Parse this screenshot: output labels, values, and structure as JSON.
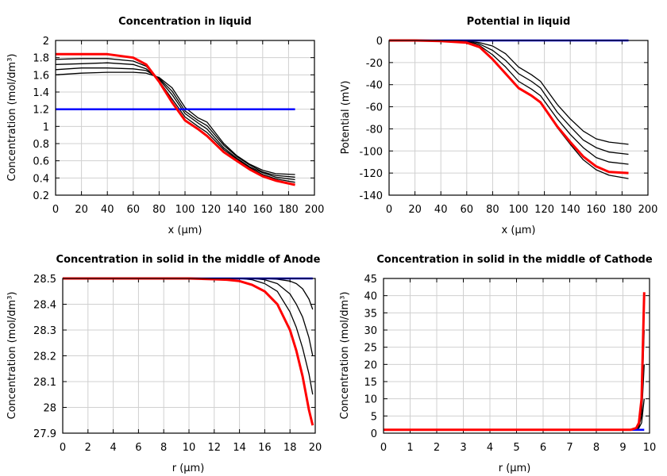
{
  "chart_data": [
    {
      "type": "line",
      "title": "Concentration in liquid",
      "xlabel": "x (µm)",
      "ylabel": "Concentration (mol/dm³)",
      "xlim": [
        0,
        200
      ],
      "ylim": [
        0.2,
        2
      ],
      "xticks": [
        0,
        20,
        40,
        60,
        80,
        100,
        120,
        140,
        160,
        180,
        200
      ],
      "yticks": [
        0.2,
        0.4,
        0.6,
        0.8,
        1,
        1.2,
        1.4,
        1.6,
        1.8,
        2
      ],
      "grid": true,
      "x": [
        0,
        20,
        40,
        60,
        70,
        80,
        90,
        100,
        110,
        117,
        130,
        140,
        150,
        160,
        170,
        185
      ],
      "series": [
        {
          "color": "#000000",
          "values": [
            1.6,
            1.62,
            1.63,
            1.63,
            1.62,
            1.57,
            1.45,
            1.22,
            1.1,
            1.05,
            0.8,
            0.66,
            0.56,
            0.49,
            0.45,
            0.44
          ]
        },
        {
          "color": "#000000",
          "values": [
            1.66,
            1.68,
            1.68,
            1.67,
            1.65,
            1.56,
            1.41,
            1.18,
            1.07,
            1.01,
            0.78,
            0.65,
            0.55,
            0.47,
            0.43,
            0.41
          ]
        },
        {
          "color": "#000000",
          "values": [
            1.72,
            1.73,
            1.74,
            1.72,
            1.67,
            1.55,
            1.37,
            1.15,
            1.04,
            0.97,
            0.75,
            0.63,
            0.53,
            0.46,
            0.41,
            0.38
          ]
        },
        {
          "color": "#000000",
          "values": [
            1.78,
            1.79,
            1.79,
            1.76,
            1.7,
            1.53,
            1.32,
            1.11,
            1.0,
            0.93,
            0.73,
            0.62,
            0.52,
            0.44,
            0.39,
            0.35
          ]
        },
        {
          "color": "#0000ff",
          "values": [
            1.2,
            1.2,
            1.2,
            1.2,
            1.2,
            1.2,
            1.2,
            1.2,
            1.2,
            1.2,
            1.2,
            1.2,
            1.2,
            1.2,
            1.2,
            1.2
          ]
        },
        {
          "color": "#ff0000",
          "values": [
            1.84,
            1.84,
            1.84,
            1.8,
            1.72,
            1.52,
            1.28,
            1.07,
            0.97,
            0.89,
            0.7,
            0.6,
            0.5,
            0.42,
            0.37,
            0.32
          ]
        }
      ]
    },
    {
      "type": "line",
      "title": "Potential in liquid",
      "xlabel": "x (µm)",
      "ylabel": "Potential (mV)",
      "xlim": [
        0,
        200
      ],
      "ylim": [
        -140,
        0
      ],
      "xticks": [
        0,
        20,
        40,
        60,
        80,
        100,
        120,
        140,
        160,
        180,
        200
      ],
      "yticks": [
        -140,
        -120,
        -100,
        -80,
        -60,
        -40,
        -20,
        0
      ],
      "grid": true,
      "x": [
        0,
        20,
        40,
        60,
        70,
        80,
        90,
        100,
        110,
        117,
        130,
        140,
        150,
        160,
        170,
        185
      ],
      "series": [
        {
          "color": "#000000",
          "values": [
            0,
            0,
            0,
            -0.5,
            -2,
            -5,
            -12,
            -24,
            -31,
            -37,
            -58,
            -71,
            -82,
            -89,
            -92,
            -94
          ]
        },
        {
          "color": "#000000",
          "values": [
            0,
            0,
            -0.2,
            -1,
            -3.3,
            -9,
            -18,
            -30,
            -37,
            -43,
            -65,
            -78,
            -90,
            -97,
            -101,
            -103
          ]
        },
        {
          "color": "#000000",
          "values": [
            0,
            0,
            -0.3,
            -1.5,
            -4.7,
            -13,
            -24,
            -37,
            -44,
            -50,
            -71,
            -85,
            -97,
            -106,
            -110,
            -112
          ]
        },
        {
          "color": "#000000",
          "values": [
            0,
            0,
            -0.5,
            -2,
            -6,
            -17,
            -30,
            -43,
            -50,
            -56,
            -79,
            -94,
            -108,
            -117,
            -122,
            -125
          ]
        },
        {
          "color": "#0000ff",
          "values": [
            0,
            0,
            0,
            0,
            0,
            0,
            0,
            0,
            0,
            0,
            0,
            0,
            0,
            0,
            0,
            0
          ]
        },
        {
          "color": "#ff0000",
          "values": [
            0,
            0,
            -0.5,
            -2,
            -6,
            -17,
            -30,
            -43,
            -50,
            -56,
            -78,
            -92,
            -105,
            -114,
            -119,
            -120
          ]
        }
      ]
    },
    {
      "type": "line",
      "title": "Concentration in solid in the middle of Anode",
      "xlabel": "r (µm)",
      "ylabel": "Concentration (mol/dm³)",
      "xlim": [
        0,
        20
      ],
      "ylim": [
        27.9,
        28.5
      ],
      "xticks": [
        0,
        2,
        4,
        6,
        8,
        10,
        12,
        14,
        16,
        18,
        20
      ],
      "yticks": [
        27.9,
        28,
        28.1,
        28.2,
        28.3,
        28.4,
        28.5
      ],
      "grid": true,
      "x": [
        0,
        4,
        8,
        10,
        12,
        13,
        14,
        15,
        16,
        17,
        18,
        18.5,
        19,
        19.5,
        19.8
      ],
      "series": [
        {
          "color": "#000000",
          "values": [
            28.5,
            28.5,
            28.5,
            28.5,
            28.5,
            28.5,
            28.5,
            28.5,
            28.5,
            28.497,
            28.49,
            28.48,
            28.46,
            28.42,
            28.38
          ]
        },
        {
          "color": "#000000",
          "values": [
            28.5,
            28.5,
            28.5,
            28.5,
            28.5,
            28.5,
            28.5,
            28.5,
            28.495,
            28.48,
            28.44,
            28.4,
            28.35,
            28.27,
            28.2
          ]
        },
        {
          "color": "#000000",
          "values": [
            28.5,
            28.5,
            28.5,
            28.5,
            28.5,
            28.5,
            28.5,
            28.495,
            28.48,
            28.45,
            28.37,
            28.31,
            28.23,
            28.13,
            28.05
          ]
        },
        {
          "color": "#0000ff",
          "values": [
            28.5,
            28.5,
            28.5,
            28.5,
            28.5,
            28.5,
            28.5,
            28.5,
            28.5,
            28.5,
            28.5,
            28.5,
            28.5,
            28.5,
            28.5
          ]
        },
        {
          "color": "#ff0000",
          "values": [
            28.5,
            28.5,
            28.5,
            28.5,
            28.497,
            28.495,
            28.49,
            28.475,
            28.45,
            28.4,
            28.3,
            28.22,
            28.12,
            27.99,
            27.93
          ]
        }
      ]
    },
    {
      "type": "line",
      "title": "Concentration in solid in the middle of Cathode",
      "xlabel": "r (µm)",
      "ylabel": "Concentration (mol/dm³)",
      "xlim": [
        0,
        10
      ],
      "ylim": [
        0,
        45
      ],
      "xticks": [
        0,
        1,
        2,
        3,
        4,
        5,
        6,
        7,
        8,
        9,
        10
      ],
      "yticks": [
        0,
        5,
        10,
        15,
        20,
        25,
        30,
        35,
        40,
        45
      ],
      "grid": true,
      "x": [
        0,
        9,
        9.3,
        9.5,
        9.6,
        9.7,
        9.8
      ],
      "series": [
        {
          "color": "#000000",
          "values": [
            1,
            1,
            1,
            1,
            1.5,
            3,
            10
          ]
        },
        {
          "color": "#000000",
          "values": [
            1,
            1,
            1,
            1,
            2,
            5,
            20
          ]
        },
        {
          "color": "#000000",
          "values": [
            1,
            1,
            1,
            1.2,
            2.5,
            7,
            30
          ]
        },
        {
          "color": "#0000ff",
          "values": [
            1,
            1,
            1,
            1,
            1,
            1,
            1
          ]
        },
        {
          "color": "#ff0000",
          "values": [
            1,
            1,
            1,
            1.5,
            3,
            10,
            41
          ]
        }
      ]
    }
  ]
}
